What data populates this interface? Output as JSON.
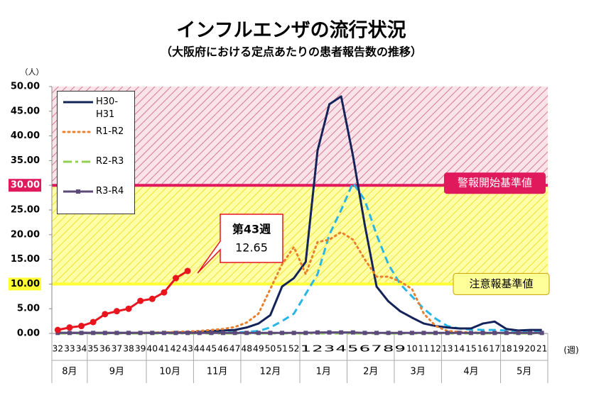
{
  "chart_data": {
    "type": "line",
    "title": "インフルエンザの流行状況",
    "subtitle": "（大阪府における定点あたりの患者報告数の推移）",
    "y_unit": "（人）",
    "x_unit": "(週)",
    "categories": [
      "32",
      "33",
      "34",
      "35",
      "36",
      "37",
      "38",
      "39",
      "40",
      "41",
      "42",
      "43",
      "44",
      "45",
      "46",
      "47",
      "48",
      "49",
      "50",
      "51",
      "52",
      "1",
      "2",
      "3",
      "4",
      "5",
      "6",
      "7",
      "8",
      "9",
      "10",
      "11",
      "12",
      "13",
      "14",
      "15",
      "16",
      "17",
      "18",
      "19",
      "20",
      "21"
    ],
    "months": [
      "8月",
      "8月",
      "8月",
      "9月",
      "9月",
      "9月",
      "9月",
      "9月",
      "10月",
      "10月",
      "10月",
      "10月",
      "11月",
      "11月",
      "11月",
      "11月",
      "12月",
      "12月",
      "12月",
      "12月",
      "12月",
      "1月",
      "1月",
      "1月",
      "1月",
      "2月",
      "2月",
      "2月",
      "2月",
      "3月",
      "3月",
      "3月",
      "3月",
      "4月",
      "4月",
      "4月",
      "4月",
      "4月",
      "5月",
      "5月",
      "5月",
      "5月"
    ],
    "ylim": [
      0,
      50
    ],
    "yticks": [
      {
        "value": 0,
        "label": "0.00"
      },
      {
        "value": 5,
        "label": "5.00"
      },
      {
        "value": 10,
        "label": "10.00"
      },
      {
        "value": 15,
        "label": "15.00"
      },
      {
        "value": 20,
        "label": "20.00"
      },
      {
        "value": 25,
        "label": "25.00"
      },
      {
        "value": 30,
        "label": "30.00"
      },
      {
        "value": 35,
        "label": "35.00"
      },
      {
        "value": 40,
        "label": "40.00"
      },
      {
        "value": 45,
        "label": "45.00"
      },
      {
        "value": 50,
        "label": "50.00"
      }
    ],
    "thresholds": [
      {
        "value": 30,
        "label": "警報開始基準値",
        "color": "#e0185c"
      },
      {
        "value": 10,
        "label": "注意報基準値",
        "color": "#ffff33"
      }
    ],
    "series": [
      {
        "color": "#29b6e6",
        "style": "dashed",
        "values": [
          0.1,
          0.1,
          0.1,
          0.1,
          0.1,
          0.1,
          0.1,
          0.1,
          0.1,
          0.1,
          0.1,
          0.1,
          0.1,
          0.2,
          0.2,
          0.2,
          0.3,
          0.5,
          1.2,
          2.5,
          4,
          8,
          12,
          20,
          25,
          30.5,
          27,
          20,
          14,
          10,
          7.5,
          5,
          3,
          1.5,
          1,
          0.8,
          0.7,
          0.7,
          0.6,
          0.5,
          0.5,
          0.5
        ]
      },
      {
        "name": "H30-H31",
        "color": "#14235a",
        "style": "solid",
        "values": [
          0.1,
          0.1,
          0.1,
          0.1,
          0.1,
          0.1,
          0.1,
          0.1,
          0.1,
          0.1,
          0.2,
          0.2,
          0.3,
          0.5,
          0.6,
          0.7,
          1.2,
          2,
          3.7,
          9.5,
          11.2,
          14.5,
          37,
          46.4,
          48,
          36,
          22,
          9.5,
          6.5,
          4.5,
          3.2,
          2,
          1.5,
          1.2,
          1,
          1,
          2,
          2.4,
          0.9,
          0.6,
          0.7,
          0.7
        ]
      },
      {
        "name": "R1-R2",
        "color": "#e8802e",
        "style": "dotted",
        "values": [
          0.1,
          0.1,
          0.1,
          0.1,
          0.1,
          0.1,
          0.1,
          0.1,
          0.2,
          0.2,
          0.3,
          0.4,
          0.5,
          0.7,
          0.9,
          1.3,
          2.2,
          4,
          9,
          14,
          17.5,
          12,
          18.5,
          19,
          20.5,
          19,
          15,
          11.5,
          11.5,
          10.5,
          9,
          4,
          1.5,
          0.5,
          0.3,
          0.2,
          0.1,
          0.1,
          0.1,
          0.1,
          0.1,
          0.1
        ]
      },
      {
        "name": "R2-R3",
        "color": "#92d050",
        "style": "dashdot",
        "values": [
          0,
          0,
          0,
          0,
          0,
          0,
          0,
          0,
          0,
          0,
          0,
          0,
          0,
          0,
          0,
          0,
          0,
          0,
          0,
          0,
          0,
          0,
          0,
          0,
          0,
          0,
          0,
          0,
          0,
          0,
          0,
          0,
          0,
          0,
          0,
          0,
          0,
          0,
          0,
          0,
          0,
          0
        ]
      },
      {
        "name": "R3-R4",
        "color": "#5b4a7a",
        "style": "marker",
        "values": [
          0.1,
          0.1,
          0.1,
          0.1,
          0.1,
          0.1,
          0.1,
          0.1,
          0.1,
          0.1,
          0.1,
          0.1,
          0.1,
          0.1,
          0.1,
          0.1,
          0.1,
          0.1,
          0.1,
          0.1,
          0.1,
          0.1,
          0.2,
          0.2,
          0.2,
          0.2,
          0.1,
          0.1,
          0.1,
          0.1,
          0.1,
          0.1,
          0.1,
          0.1,
          0.1,
          0.1,
          0.1,
          0.1,
          0.1,
          0.1,
          0.1,
          0.1
        ]
      },
      {
        "color": "#e8141e",
        "style": "circle",
        "values": [
          0.7,
          1.2,
          1.5,
          2.3,
          3.9,
          4.5,
          5,
          6.6,
          7,
          8.3,
          11.2,
          12.65,
          null,
          null,
          null,
          null,
          null,
          null,
          null,
          null,
          null,
          null,
          null,
          null,
          null,
          null,
          null,
          null,
          null,
          null,
          null,
          null,
          null,
          null,
          null,
          null,
          null,
          null,
          null,
          null,
          null,
          null
        ]
      }
    ],
    "annotation": {
      "label": "第43週",
      "value": 12.65
    }
  }
}
